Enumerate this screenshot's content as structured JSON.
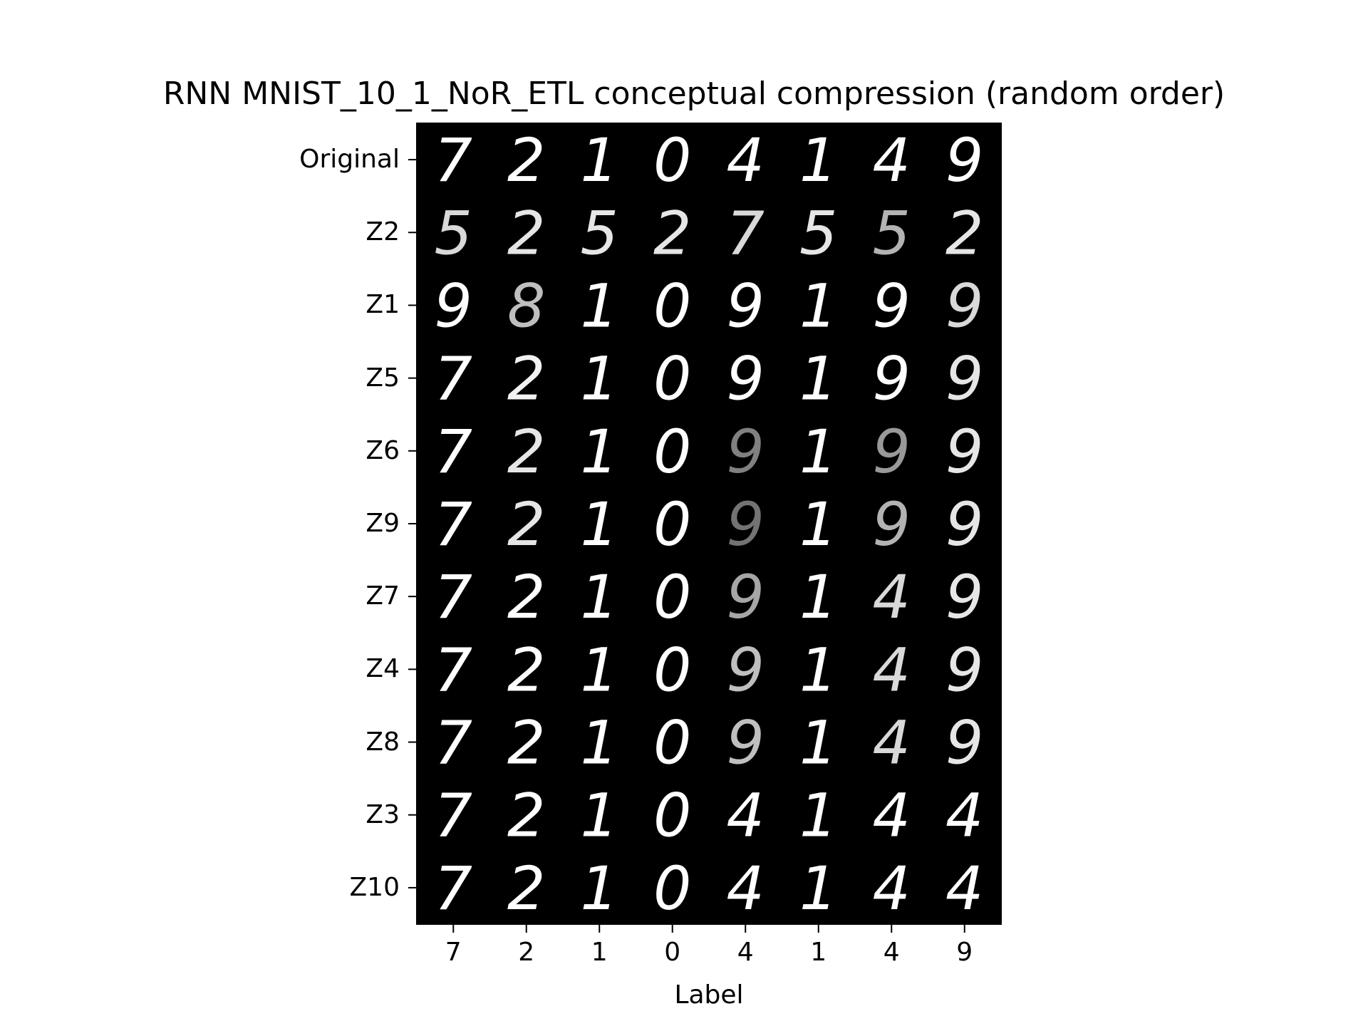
{
  "chart_data": {
    "type": "heatmap",
    "title": "RNN MNIST_10_1_NoR_ETL conceptual compression (random order)",
    "xlabel": "Label",
    "ylabel": "",
    "x_tick_labels": [
      "7",
      "2",
      "1",
      "0",
      "4",
      "1",
      "4",
      "9"
    ],
    "y_tick_labels": [
      "Original",
      "Z2",
      "Z1",
      "Z5",
      "Z6",
      "Z9",
      "Z7",
      "Z4",
      "Z8",
      "Z3",
      "Z10"
    ],
    "colormap": "gray",
    "background_color": "#000000",
    "digit_color": "#ffffff",
    "grid": false,
    "cells": [
      [
        "7",
        "2",
        "1",
        "0",
        "4",
        "1",
        "4",
        "9"
      ],
      [
        "5",
        "2",
        "5",
        "2",
        "7",
        "5",
        "5",
        "2"
      ],
      [
        "9",
        "8",
        "1",
        "0",
        "9",
        "1",
        "9",
        "9"
      ],
      [
        "7",
        "2",
        "1",
        "0",
        "9",
        "1",
        "9",
        "9"
      ],
      [
        "7",
        "2",
        "1",
        "0",
        "9",
        "1",
        "9",
        "9"
      ],
      [
        "7",
        "2",
        "1",
        "0",
        "9",
        "1",
        "9",
        "9"
      ],
      [
        "7",
        "2",
        "1",
        "0",
        "9",
        "1",
        "4",
        "9"
      ],
      [
        "7",
        "2",
        "1",
        "0",
        "9",
        "1",
        "4",
        "9"
      ],
      [
        "7",
        "2",
        "1",
        "0",
        "9",
        "1",
        "4",
        "9"
      ],
      [
        "7",
        "2",
        "1",
        "0",
        "4",
        "1",
        "4",
        "4"
      ],
      [
        "7",
        "2",
        "1",
        "0",
        "4",
        "1",
        "4",
        "4"
      ]
    ],
    "cell_intensity": [
      [
        1,
        1,
        1,
        1,
        1,
        1,
        1,
        1
      ],
      [
        0.85,
        0.9,
        0.9,
        0.9,
        0.85,
        0.9,
        0.7,
        0.9
      ],
      [
        1,
        0.75,
        1,
        1,
        1,
        1,
        1,
        0.85
      ],
      [
        1,
        0.95,
        1,
        1,
        1,
        1,
        1,
        0.9
      ],
      [
        1,
        0.9,
        1,
        1,
        0.5,
        1,
        0.6,
        0.9
      ],
      [
        1,
        0.9,
        1,
        1,
        0.45,
        1,
        0.7,
        0.9
      ],
      [
        1,
        1,
        1,
        1,
        0.65,
        1,
        0.85,
        0.9
      ],
      [
        1,
        1,
        1,
        1,
        0.75,
        1,
        0.85,
        0.9
      ],
      [
        1,
        1,
        1,
        1,
        0.75,
        1,
        0.85,
        0.9
      ],
      [
        1,
        1,
        1,
        1,
        1,
        1,
        1,
        1
      ],
      [
        1,
        1,
        1,
        1,
        1,
        1,
        1,
        1
      ]
    ]
  }
}
